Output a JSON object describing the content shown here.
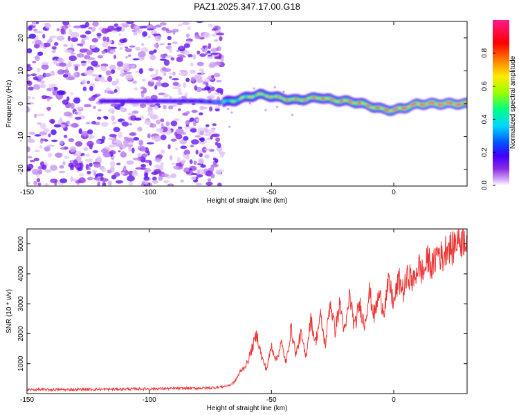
{
  "chart_data": [
    {
      "type": "heatmap",
      "title": "PAZ1.2025.347.17.00.G18",
      "xlabel": "Height of straight line (km)",
      "ylabel": "Frequency (Hz)",
      "xlim": [
        -150,
        30
      ],
      "ylim": [
        -25,
        25
      ],
      "xticks": [
        "-150",
        "-100",
        "-50",
        "0"
      ],
      "xtick_values": [
        -150,
        -100,
        -50,
        0
      ],
      "yticks": [
        "20",
        "10",
        "0",
        "-10",
        "-20"
      ],
      "ytick_values": [
        20,
        10,
        0,
        -10,
        -20
      ],
      "noise_region": {
        "x_from": -150,
        "x_to": -70,
        "y_from": -25,
        "y_to": 25,
        "typical_amplitude": 0.1
      },
      "ridge": {
        "x": [
          -150,
          -120,
          -110,
          -100,
          -90,
          -80,
          -75,
          -70,
          -65,
          -60,
          -55,
          -50,
          -45,
          -40,
          -35,
          -30,
          -25,
          -20,
          -15,
          -10,
          -5,
          0,
          5,
          10,
          15,
          20,
          25,
          30
        ],
        "frequency": [
          0.8,
          0.8,
          0.8,
          0.8,
          0.8,
          0.8,
          0.6,
          0.4,
          1.0,
          2.0,
          2.8,
          2.3,
          1.6,
          1.1,
          1.5,
          1.9,
          1.1,
          0.8,
          0.4,
          -0.6,
          -1.6,
          -2.0,
          -1.1,
          -0.1,
          0.0,
          0.0,
          0.0,
          0.0
        ],
        "amplitude": [
          0.15,
          0.2,
          0.22,
          0.25,
          0.28,
          0.3,
          0.35,
          0.5,
          0.62,
          0.68,
          0.72,
          0.74,
          0.78,
          0.8,
          0.8,
          0.82,
          0.84,
          0.85,
          0.86,
          0.87,
          0.88,
          0.9,
          0.92,
          0.95,
          0.97,
          0.98,
          0.98,
          0.98
        ]
      },
      "colorbar": {
        "label": "Normalized spectral amplitude",
        "range": [
          0,
          1
        ],
        "ticks": [
          "0.0",
          "0.2",
          "0.4",
          "0.6",
          "0.8"
        ],
        "tick_values": [
          0,
          0.2,
          0.4,
          0.6,
          0.8
        ],
        "colormap": [
          "#ffffff",
          "#d8b4f8",
          "#8a2be2",
          "#3f00ff",
          "#0055ff",
          "#00d8ff",
          "#00ff80",
          "#9aff00",
          "#ffea00",
          "#ff7a00",
          "#ff0000",
          "#ff1a8a"
        ]
      }
    },
    {
      "type": "line",
      "xlabel": "Height of straight line (km)",
      "ylabel": "SNR (10 * v/v)",
      "xlim": [
        -150,
        30
      ],
      "ylim": [
        0,
        5500
      ],
      "xticks": [
        "-150",
        "-100",
        "-50",
        "0"
      ],
      "xtick_values": [
        -150,
        -100,
        -50,
        0
      ],
      "yticks": [
        "1000",
        "2000",
        "3000",
        "4000",
        "5000"
      ],
      "ytick_values": [
        1000,
        2000,
        3000,
        4000,
        5000
      ],
      "color": "#ee3333",
      "series": [
        {
          "name": "SNR",
          "x": [
            -150,
            -140,
            -130,
            -120,
            -110,
            -100,
            -90,
            -80,
            -75,
            -70,
            -67,
            -65,
            -63,
            -60,
            -58,
            -56,
            -54,
            -52,
            -50,
            -48,
            -46,
            -44,
            -42,
            -40,
            -38,
            -36,
            -34,
            -32,
            -30,
            -28,
            -26,
            -24,
            -22,
            -20,
            -18,
            -16,
            -14,
            -12,
            -10,
            -8,
            -6,
            -4,
            -2,
            0,
            2,
            4,
            6,
            8,
            10,
            12,
            14,
            16,
            18,
            20,
            22,
            24,
            26,
            28,
            30
          ],
          "y": [
            130,
            130,
            135,
            140,
            150,
            160,
            170,
            180,
            190,
            230,
            280,
            400,
            700,
            1000,
            1500,
            2000,
            1200,
            800,
            1600,
            1100,
            1700,
            1000,
            2200,
            1300,
            2000,
            1200,
            2500,
            1700,
            2600,
            1600,
            3100,
            2100,
            3000,
            2000,
            3300,
            2200,
            3000,
            2300,
            3400,
            2600,
            3300,
            2800,
            3700,
            3000,
            3800,
            3400,
            4000,
            3700,
            4300,
            4000,
            4500,
            4200,
            4800,
            4500,
            5000,
            4800,
            5200,
            5100,
            5300
          ]
        }
      ]
    }
  ]
}
